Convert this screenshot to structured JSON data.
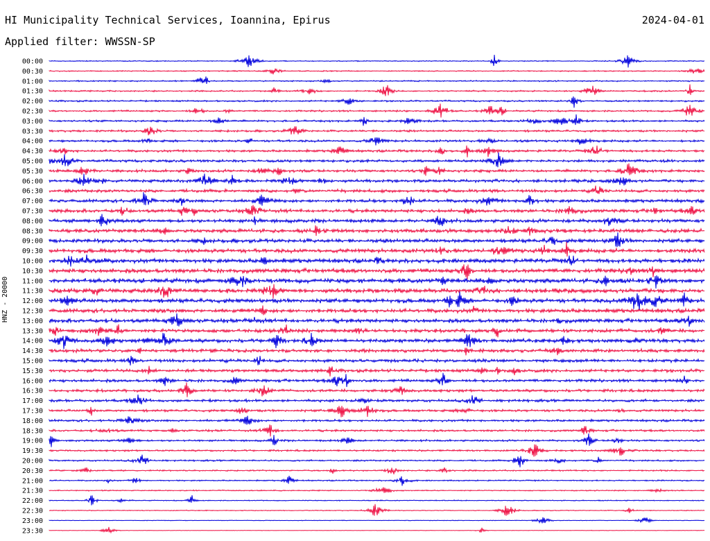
{
  "header": {
    "station": "HI Municipality Technical Services, Ioannina, Epirus",
    "date": "2024-04-01",
    "filter": "Applied filter: WWSSN-SP"
  },
  "chart_data": {
    "type": "helicorder",
    "channel_label": "HNZ - 20000",
    "row_labels": [
      "00:00",
      "00:30",
      "01:00",
      "01:30",
      "02:00",
      "02:30",
      "03:00",
      "03:30",
      "04:00",
      "04:30",
      "05:00",
      "05:30",
      "06:00",
      "06:30",
      "07:00",
      "07:30",
      "08:00",
      "08:30",
      "09:00",
      "09:30",
      "10:00",
      "10:30",
      "11:00",
      "11:30",
      "12:00",
      "12:30",
      "13:00",
      "13:30",
      "14:00",
      "14:30",
      "15:00",
      "15:30",
      "16:00",
      "16:30",
      "17:00",
      "17:30",
      "18:00",
      "18:30",
      "19:00",
      "19:30",
      "20:00",
      "20:30",
      "21:00",
      "21:30",
      "22:00",
      "22:30",
      "23:00",
      "23:30"
    ],
    "trace_colors": [
      "#0000dd",
      "#ee1144"
    ],
    "grid": false
  }
}
